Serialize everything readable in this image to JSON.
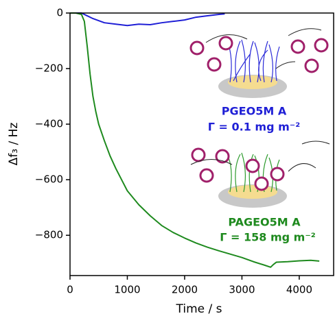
{
  "chart_data": {
    "type": "line",
    "xlabel": "Time / s",
    "ylabel": "Δf₃ / Hz",
    "xlim": [
      0,
      4600
    ],
    "ylim": [
      -945,
      0
    ],
    "xticks": [
      0,
      1000,
      2000,
      3000,
      4000
    ],
    "yticks": [
      0,
      {
        "value": -200,
        "label": "−200"
      },
      {
        "value": -400,
        "label": "−400"
      },
      {
        "value": -600,
        "label": "−600"
      },
      {
        "value": -800,
        "label": "−800"
      }
    ],
    "series": [
      {
        "name": "PGEO5M A",
        "color": "#1f1fd6",
        "x": [
          0,
          200,
          300,
          400,
          600,
          800,
          1000,
          1200,
          1400,
          1600,
          1800,
          2000,
          2200,
          2400,
          2600,
          2700
        ],
        "values": [
          0,
          0,
          -10,
          -20,
          -35,
          -40,
          -45,
          -40,
          -42,
          -35,
          -30,
          -25,
          -15,
          -10,
          -5,
          -3
        ]
      },
      {
        "name": "PAGEO5M A",
        "color": "#1e8a1e",
        "x": [
          0,
          100,
          200,
          250,
          300,
          350,
          400,
          450,
          500,
          600,
          700,
          800,
          900,
          1000,
          1200,
          1400,
          1600,
          1800,
          2000,
          2200,
          2400,
          2600,
          2800,
          3000,
          3200,
          3400,
          3500,
          3550,
          3600,
          3800,
          4000,
          4200,
          4350
        ],
        "values": [
          0,
          0,
          -5,
          -30,
          -120,
          -220,
          -300,
          -355,
          -400,
          -460,
          -515,
          -560,
          -600,
          -640,
          -690,
          -730,
          -765,
          -790,
          -810,
          -828,
          -843,
          -856,
          -868,
          -880,
          -895,
          -908,
          -915,
          -905,
          -897,
          -895,
          -892,
          -890,
          -893
        ]
      }
    ],
    "annotations": [
      "Γ = 0.1 mg m⁻²",
      "Γ = 158 mg m⁻²"
    ]
  }
}
